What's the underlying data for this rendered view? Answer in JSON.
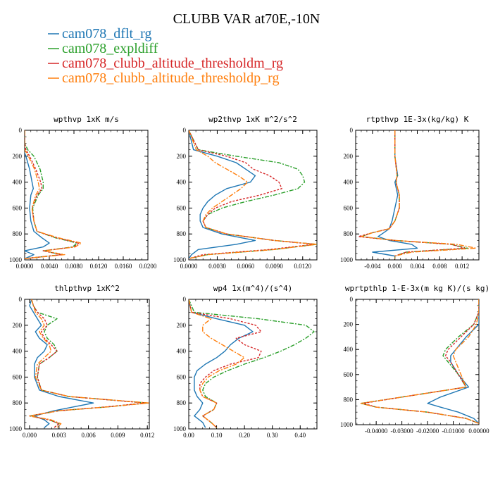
{
  "figure": {
    "title": "CLUBB VAR at70E,-10N",
    "colors": {
      "blue": "#1f77b4",
      "green": "#2ca02c",
      "red": "#d62728",
      "orange": "#ff7f0e"
    }
  },
  "legend": [
    {
      "label": "cam078_dflt_rg",
      "color": "#1f77b4"
    },
    {
      "label": "cam078_expldiff",
      "color": "#2ca02c"
    },
    {
      "label": "cam078_clubb_altitude_thresholdm_rg",
      "color": "#d62728"
    },
    {
      "label": "cam078_clubb_altitude_thresholdp_rg",
      "color": "#ff7f0e"
    }
  ],
  "chart_data": [
    {
      "type": "line",
      "title": "wpthvp  1xK m/s",
      "xlabel": "",
      "ylabel": "",
      "xlim": [
        0,
        0.02
      ],
      "ylim": [
        0,
        1000
      ],
      "y_inverted": true,
      "xticks": [
        "0.0000",
        "0.0040",
        "0.0080",
        "0.0120",
        "0.0160",
        "0.0200"
      ],
      "yticks": [
        "0",
        "200",
        "400",
        "600",
        "800",
        "1000"
      ],
      "y": [
        0,
        100,
        150,
        200,
        300,
        400,
        450,
        500,
        600,
        700,
        780,
        830,
        870,
        900,
        930,
        960,
        990
      ],
      "series": [
        {
          "name": "cam078_dflt_rg",
          "color": "#1f77b4",
          "values": [
            0.0,
            0.0,
            -0.0002,
            0.0002,
            0.0008,
            0.0012,
            0.0014,
            0.001,
            0.0008,
            0.001,
            0.0015,
            0.0028,
            0.004,
            0.003,
            0.0,
            0.0015,
            0.0
          ]
        },
        {
          "name": "cam078_expldiff",
          "color": "#2ca02c",
          "values": [
            0.0,
            0.0,
            0.0005,
            0.0015,
            0.0025,
            0.003,
            0.003,
            0.0022,
            0.0013,
            0.0015,
            0.002,
            0.005,
            0.0085,
            0.0078,
            0.003,
            0.006,
            0.0
          ]
        },
        {
          "name": "cam078_clubb_altitude_thresholdm_rg",
          "color": "#d62728",
          "values": [
            0.0,
            0.0,
            0.0002,
            0.0008,
            0.0018,
            0.0026,
            0.0028,
            0.002,
            0.0012,
            0.0015,
            0.002,
            0.0052,
            0.0088,
            0.008,
            0.003,
            0.006,
            0.0
          ]
        },
        {
          "name": "cam078_clubb_altitude_thresholdp_rg",
          "color": "#ff7f0e",
          "values": [
            0.0,
            0.0,
            0.0,
            0.0006,
            0.0016,
            0.0022,
            0.0024,
            0.0018,
            0.0012,
            0.0015,
            0.002,
            0.0055,
            0.0092,
            0.0082,
            0.0032,
            0.0065,
            0.0
          ]
        }
      ]
    },
    {
      "type": "line",
      "title": "wp2thvp  1xK m^2/s^2",
      "xlabel": "",
      "ylabel": "",
      "xlim": [
        0,
        0.0135
      ],
      "ylim": [
        0,
        1000
      ],
      "y_inverted": true,
      "xticks": [
        "0.0000",
        "0.0030",
        "0.0060",
        "0.0090",
        "0.0120"
      ],
      "yticks": [
        "0",
        "200",
        "400",
        "600",
        "800",
        "1000"
      ],
      "y": [
        0,
        150,
        200,
        250,
        300,
        350,
        400,
        450,
        500,
        550,
        600,
        650,
        700,
        750,
        800,
        850,
        880,
        920,
        960,
        990
      ],
      "series": [
        {
          "name": "cam078_dflt_rg",
          "color": "#1f77b4",
          "values": [
            0.0,
            0.0005,
            0.003,
            0.005,
            0.006,
            0.007,
            0.0065,
            0.004,
            0.0028,
            0.002,
            0.0015,
            0.0012,
            0.0012,
            0.0015,
            0.0035,
            0.007,
            0.005,
            0.001,
            0.0003,
            0.0
          ]
        },
        {
          "name": "cam078_expldiff",
          "color": "#2ca02c",
          "values": [
            0.0,
            0.001,
            0.005,
            0.0095,
            0.0115,
            0.012,
            0.0122,
            0.0115,
            0.009,
            0.006,
            0.0035,
            0.002,
            0.0015,
            0.0018,
            0.004,
            0.009,
            0.0135,
            0.009,
            0.002,
            0.0
          ]
        },
        {
          "name": "cam078_clubb_altitude_thresholdm_rg",
          "color": "#d62728",
          "values": [
            0.0,
            0.001,
            0.004,
            0.006,
            0.0068,
            0.0085,
            0.0095,
            0.0098,
            0.0075,
            0.0045,
            0.0028,
            0.002,
            0.0015,
            0.0018,
            0.004,
            0.009,
            0.0132,
            0.0085,
            0.0015,
            0.0
          ]
        },
        {
          "name": "cam078_clubb_altitude_thresholdp_rg",
          "color": "#ff7f0e",
          "values": [
            0.0,
            0.0008,
            0.002,
            0.0028,
            0.004,
            0.0052,
            0.0062,
            0.0055,
            0.0045,
            0.0035,
            0.0025,
            0.0018,
            0.0015,
            0.0018,
            0.004,
            0.009,
            0.0135,
            0.009,
            0.002,
            0.0
          ]
        }
      ]
    },
    {
      "type": "line",
      "title": "rtpthvp  1E-3x(kg/kg) K",
      "xlabel": "",
      "ylabel": "",
      "xlim": [
        -0.007,
        0.015
      ],
      "ylim": [
        0,
        1000
      ],
      "y_inverted": true,
      "xticks": [
        "-0.004",
        "0.000",
        "0.004",
        "0.008",
        "0.012"
      ],
      "yticks": [
        "0",
        "200",
        "400",
        "600",
        "800",
        "1000"
      ],
      "y": [
        0,
        200,
        350,
        400,
        500,
        600,
        700,
        760,
        790,
        820,
        850,
        880,
        910,
        940,
        970,
        990
      ],
      "series": [
        {
          "name": "cam078_dflt_rg",
          "color": "#1f77b4",
          "values": [
            0.0,
            0.0,
            0.0005,
            0.0,
            0.0005,
            0.0,
            -0.0005,
            -0.001,
            -0.002,
            -0.003,
            -0.001,
            0.003,
            0.004,
            -0.004,
            0.0,
            0.0
          ]
        },
        {
          "name": "cam078_expldiff",
          "color": "#2ca02c",
          "values": [
            0.0,
            0.0,
            0.0004,
            0.0002,
            0.0008,
            0.0008,
            0.0,
            -0.001,
            -0.004,
            -0.006,
            0.0,
            0.01,
            0.013,
            0.002,
            0.0,
            0.0
          ]
        },
        {
          "name": "cam078_clubb_altitude_thresholdm_rg",
          "color": "#d62728",
          "values": [
            0.0,
            0.0,
            0.0004,
            0.0002,
            0.0008,
            0.0008,
            0.0,
            -0.001,
            -0.004,
            -0.0065,
            0.0,
            0.01,
            0.0125,
            0.002,
            0.0,
            0.0
          ]
        },
        {
          "name": "cam078_clubb_altitude_thresholdp_rg",
          "color": "#ff7f0e",
          "values": [
            0.0,
            0.0,
            0.0004,
            0.0002,
            0.0008,
            0.0008,
            0.0,
            -0.001,
            -0.004,
            -0.006,
            0.0,
            0.011,
            0.0145,
            0.003,
            0.0,
            0.0
          ]
        }
      ]
    },
    {
      "type": "line",
      "title": "thlpthvp  1xK^2",
      "xlabel": "",
      "ylabel": "",
      "xlim": [
        -0.0005,
        0.0122
      ],
      "ylim": [
        0,
        1000
      ],
      "y_inverted": true,
      "xticks": [
        "0.000",
        "0.003",
        "0.006",
        "0.009",
        "0.012"
      ],
      "yticks": [
        "0",
        "200",
        "400",
        "600",
        "800",
        "1000"
      ],
      "y": [
        0,
        50,
        100,
        150,
        200,
        250,
        300,
        350,
        400,
        450,
        500,
        600,
        700,
        750,
        800,
        830,
        860,
        900,
        930,
        960,
        990
      ],
      "series": [
        {
          "name": "cam078_dflt_rg",
          "color": "#1f77b4",
          "values": [
            0.0002,
            0.0,
            0.0004,
            0.0008,
            0.0012,
            0.0006,
            0.001,
            0.0018,
            0.0015,
            0.0008,
            0.0005,
            0.0005,
            0.001,
            0.003,
            0.0065,
            0.0045,
            0.0025,
            0.0005,
            0.0015,
            0.002,
            0.0015
          ]
        },
        {
          "name": "cam078_expldiff",
          "color": "#2ca02c",
          "values": [
            0.0002,
            0.0004,
            0.0008,
            0.0028,
            0.0018,
            0.0015,
            0.0018,
            0.0025,
            0.0028,
            0.002,
            0.001,
            0.0008,
            0.0012,
            0.004,
            0.012,
            0.008,
            0.003,
            0.0,
            0.002,
            0.003,
            0.0025
          ]
        },
        {
          "name": "cam078_clubb_altitude_thresholdm_rg",
          "color": "#d62728",
          "values": [
            0.0002,
            0.0004,
            0.0008,
            0.0015,
            0.0018,
            0.0012,
            0.0015,
            0.0022,
            0.0028,
            0.002,
            0.001,
            0.0008,
            0.0012,
            0.004,
            0.0118,
            0.0078,
            0.003,
            0.0,
            0.002,
            0.003,
            0.0025
          ]
        },
        {
          "name": "cam078_clubb_altitude_thresholdp_rg",
          "color": "#ff7f0e",
          "values": [
            0.0002,
            0.0004,
            0.0006,
            0.0012,
            0.0015,
            0.001,
            0.0014,
            0.002,
            0.0022,
            0.0015,
            0.0008,
            0.0006,
            0.0012,
            0.004,
            0.0122,
            0.008,
            0.003,
            0.0,
            0.0022,
            0.0032,
            0.0028
          ]
        }
      ]
    },
    {
      "type": "line",
      "title": "wp4  1x(m^4)/(s^4)",
      "xlabel": "",
      "ylabel": "",
      "xlim": [
        0,
        0.46
      ],
      "ylim": [
        0,
        1000
      ],
      "y_inverted": true,
      "xticks": [
        "0.00",
        "0.10",
        "0.20",
        "0.30",
        "0.40"
      ],
      "yticks": [
        "0",
        "200",
        "400",
        "600",
        "800",
        "1000"
      ],
      "y": [
        0,
        100,
        150,
        200,
        250,
        300,
        350,
        400,
        450,
        500,
        550,
        600,
        650,
        700,
        750,
        800,
        850,
        900,
        950,
        990
      ],
      "series": [
        {
          "name": "cam078_dflt_rg",
          "color": "#1f77b4",
          "values": [
            0.0,
            0.01,
            0.1,
            0.2,
            0.23,
            0.18,
            0.15,
            0.13,
            0.1,
            0.06,
            0.03,
            0.02,
            0.02,
            0.02,
            0.03,
            0.05,
            0.04,
            0.02,
            0.05,
            0.06
          ]
        },
        {
          "name": "cam078_expldiff",
          "color": "#2ca02c",
          "values": [
            0.0,
            0.02,
            0.25,
            0.42,
            0.45,
            0.42,
            0.38,
            0.33,
            0.27,
            0.2,
            0.14,
            0.09,
            0.06,
            0.05,
            0.06,
            0.1,
            0.09,
            0.05,
            0.08,
            0.1
          ]
        },
        {
          "name": "cam078_clubb_altitude_thresholdm_rg",
          "color": "#d62728",
          "values": [
            0.0,
            0.01,
            0.15,
            0.24,
            0.26,
            0.17,
            0.2,
            0.26,
            0.25,
            0.15,
            0.09,
            0.06,
            0.04,
            0.04,
            0.05,
            0.1,
            0.09,
            0.05,
            0.08,
            0.1
          ]
        },
        {
          "name": "cam078_clubb_altitude_thresholdp_rg",
          "color": "#ff7f0e",
          "values": [
            0.0,
            0.01,
            0.08,
            0.05,
            0.05,
            0.08,
            0.12,
            0.16,
            0.2,
            0.17,
            0.11,
            0.07,
            0.05,
            0.04,
            0.05,
            0.1,
            0.09,
            0.05,
            0.08,
            0.1
          ]
        }
      ]
    },
    {
      "type": "line",
      "title": "wprtpthlp  1-E-3x(m kg K)/(s kg)",
      "xlabel": "",
      "ylabel": "",
      "xlim": [
        -0.048,
        0.0
      ],
      "ylim": [
        0,
        1000
      ],
      "y_inverted": true,
      "xticks": [
        "-0.04000",
        "-0.03000",
        "-0.02000",
        "-0.01000",
        "0.00000"
      ],
      "yticks": [
        "0",
        "200",
        "400",
        "600",
        "800",
        "1000"
      ],
      "y": [
        0,
        100,
        200,
        300,
        400,
        450,
        500,
        600,
        700,
        780,
        830,
        860,
        900,
        950,
        990
      ],
      "series": [
        {
          "name": "cam078_dflt_rg",
          "color": "#1f77b4",
          "values": [
            0.0,
            0.0,
            0.0,
            -0.005,
            -0.009,
            -0.011,
            -0.011,
            -0.008,
            -0.004,
            -0.015,
            -0.02,
            -0.015,
            -0.008,
            -0.002,
            0.0
          ]
        },
        {
          "name": "cam078_expldiff",
          "color": "#2ca02c",
          "values": [
            0.0,
            0.0,
            -0.002,
            -0.008,
            -0.013,
            -0.014,
            -0.012,
            -0.008,
            -0.005,
            -0.03,
            -0.046,
            -0.04,
            -0.02,
            -0.005,
            0.0
          ]
        },
        {
          "name": "cam078_clubb_altitude_thresholdm_rg",
          "color": "#d62728",
          "values": [
            0.0,
            0.0,
            -0.002,
            -0.007,
            -0.012,
            -0.013,
            -0.011,
            -0.008,
            -0.005,
            -0.03,
            -0.045,
            -0.04,
            -0.02,
            -0.005,
            0.0
          ]
        },
        {
          "name": "cam078_clubb_altitude_thresholdp_rg",
          "color": "#ff7f0e",
          "values": [
            0.0,
            0.0,
            -0.001,
            -0.004,
            -0.009,
            -0.01,
            -0.009,
            -0.007,
            -0.005,
            -0.03,
            -0.046,
            -0.04,
            -0.02,
            -0.005,
            0.0
          ]
        }
      ]
    }
  ]
}
